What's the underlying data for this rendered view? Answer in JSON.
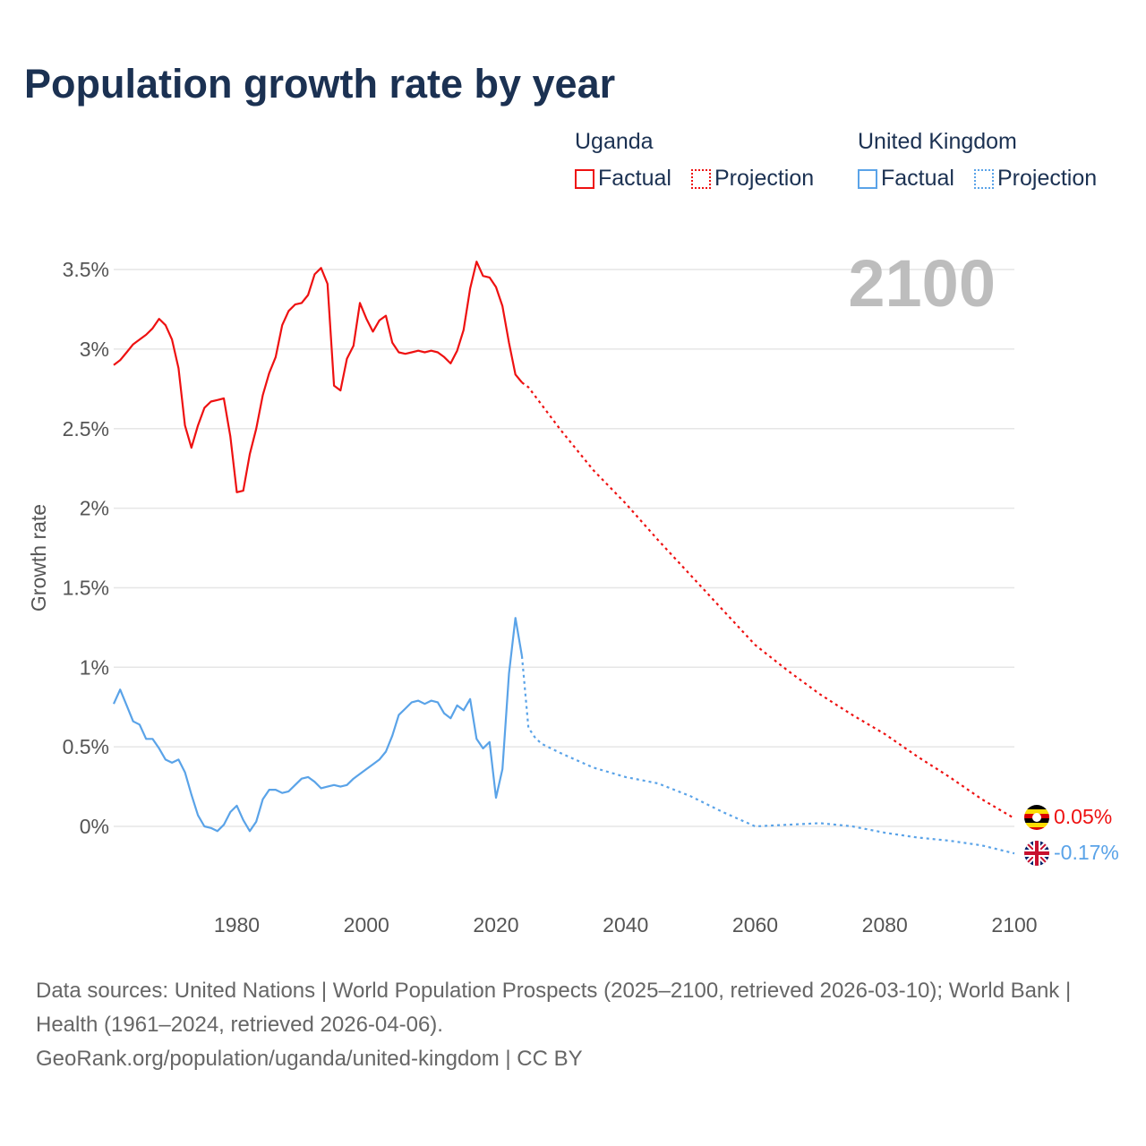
{
  "title": "Population growth rate by year",
  "legend": {
    "groups": [
      {
        "name": "Uganda",
        "factual": "Factual",
        "projection": "Projection",
        "color": "#ee1111"
      },
      {
        "name": "United Kingdom",
        "factual": "Factual",
        "projection": "Projection",
        "color": "#5aa3e8"
      }
    ]
  },
  "chart_data": {
    "type": "line",
    "title": "Population growth rate by year",
    "xlabel": "",
    "ylabel": "Growth rate",
    "xlim": [
      1961,
      2100
    ],
    "ylim": [
      -0.4,
      3.85
    ],
    "x_ticks": [
      1980,
      2000,
      2020,
      2040,
      2060,
      2080,
      2100
    ],
    "x_tick_labels": [
      "1980",
      "2000",
      "2020",
      "2040",
      "2060",
      "2080",
      "2100"
    ],
    "y_ticks": [
      0,
      0.5,
      1,
      1.5,
      2,
      2.5,
      3,
      3.5
    ],
    "y_tick_labels": [
      "0%",
      "0.5%",
      "1%",
      "1.5%",
      "2%",
      "2.5%",
      "3%",
      "3.5%"
    ],
    "grid": true,
    "year_stamp": "2100",
    "series": [
      {
        "name": "Uganda",
        "kind": "factual",
        "color": "#ee1111",
        "x_start": 1961,
        "values": [
          2.9,
          2.93,
          2.98,
          3.03,
          3.06,
          3.09,
          3.13,
          3.19,
          3.15,
          3.06,
          2.88,
          2.52,
          2.38,
          2.52,
          2.63,
          2.67,
          2.68,
          2.69,
          2.45,
          2.1,
          2.11,
          2.34,
          2.5,
          2.71,
          2.85,
          2.95,
          3.15,
          3.24,
          3.28,
          3.29,
          3.34,
          3.47,
          3.51,
          3.41,
          2.77,
          2.74,
          2.94,
          3.02,
          3.29,
          3.19,
          3.11,
          3.18,
          3.21,
          3.04,
          2.98,
          2.97,
          2.98,
          2.99,
          2.98,
          2.99,
          2.98,
          2.95,
          2.91,
          2.99,
          3.12,
          3.38,
          3.55,
          3.46,
          3.45,
          3.39,
          3.27,
          3.04,
          2.84,
          2.79
        ]
      },
      {
        "name": "Uganda",
        "kind": "projection",
        "color": "#ee1111",
        "x": [
          2024,
          2025,
          2030,
          2035,
          2040,
          2045,
          2050,
          2055,
          2060,
          2065,
          2070,
          2075,
          2080,
          2085,
          2090,
          2095,
          2100
        ],
        "values": [
          2.79,
          2.76,
          2.49,
          2.24,
          2.03,
          1.8,
          1.58,
          1.36,
          1.14,
          0.98,
          0.83,
          0.7,
          0.58,
          0.44,
          0.31,
          0.17,
          0.05
        ]
      },
      {
        "name": "United Kingdom",
        "kind": "factual",
        "color": "#5aa3e8",
        "x_start": 1961,
        "values": [
          0.77,
          0.86,
          0.76,
          0.66,
          0.64,
          0.55,
          0.55,
          0.49,
          0.42,
          0.4,
          0.42,
          0.34,
          0.2,
          0.07,
          0.0,
          -0.01,
          -0.03,
          0.01,
          0.09,
          0.13,
          0.04,
          -0.03,
          0.03,
          0.17,
          0.23,
          0.23,
          0.21,
          0.22,
          0.26,
          0.3,
          0.31,
          0.28,
          0.24,
          0.25,
          0.26,
          0.25,
          0.26,
          0.3,
          0.33,
          0.36,
          0.39,
          0.42,
          0.47,
          0.57,
          0.7,
          0.74,
          0.78,
          0.79,
          0.77,
          0.79,
          0.78,
          0.71,
          0.68,
          0.76,
          0.73,
          0.8,
          0.55,
          0.49,
          0.53,
          0.18,
          0.36,
          0.96,
          1.31,
          1.07
        ]
      },
      {
        "name": "United Kingdom",
        "kind": "projection",
        "color": "#5aa3e8",
        "x": [
          2024,
          2025,
          2026,
          2027,
          2030,
          2035,
          2040,
          2045,
          2050,
          2055,
          2060,
          2065,
          2070,
          2075,
          2080,
          2085,
          2090,
          2095,
          2100
        ],
        "values": [
          1.07,
          0.62,
          0.56,
          0.52,
          0.46,
          0.37,
          0.31,
          0.27,
          0.19,
          0.09,
          0.0,
          0.01,
          0.02,
          0.0,
          -0.04,
          -0.07,
          -0.09,
          -0.12,
          -0.17
        ]
      }
    ],
    "end_labels": [
      {
        "name": "Uganda",
        "label": "0.05%",
        "color": "#ee1111"
      },
      {
        "name": "United Kingdom",
        "label": "-0.17%",
        "color": "#5aa3e8"
      }
    ]
  },
  "footer": {
    "sources": "Data sources: United Nations | World Population Prospects (2025–2100, retrieved 2026-03-10); World Bank | Health (1961–2024, retrieved 2026-04-06).",
    "link": "GeoRank.org/population/uganda/united-kingdom | CC BY"
  }
}
